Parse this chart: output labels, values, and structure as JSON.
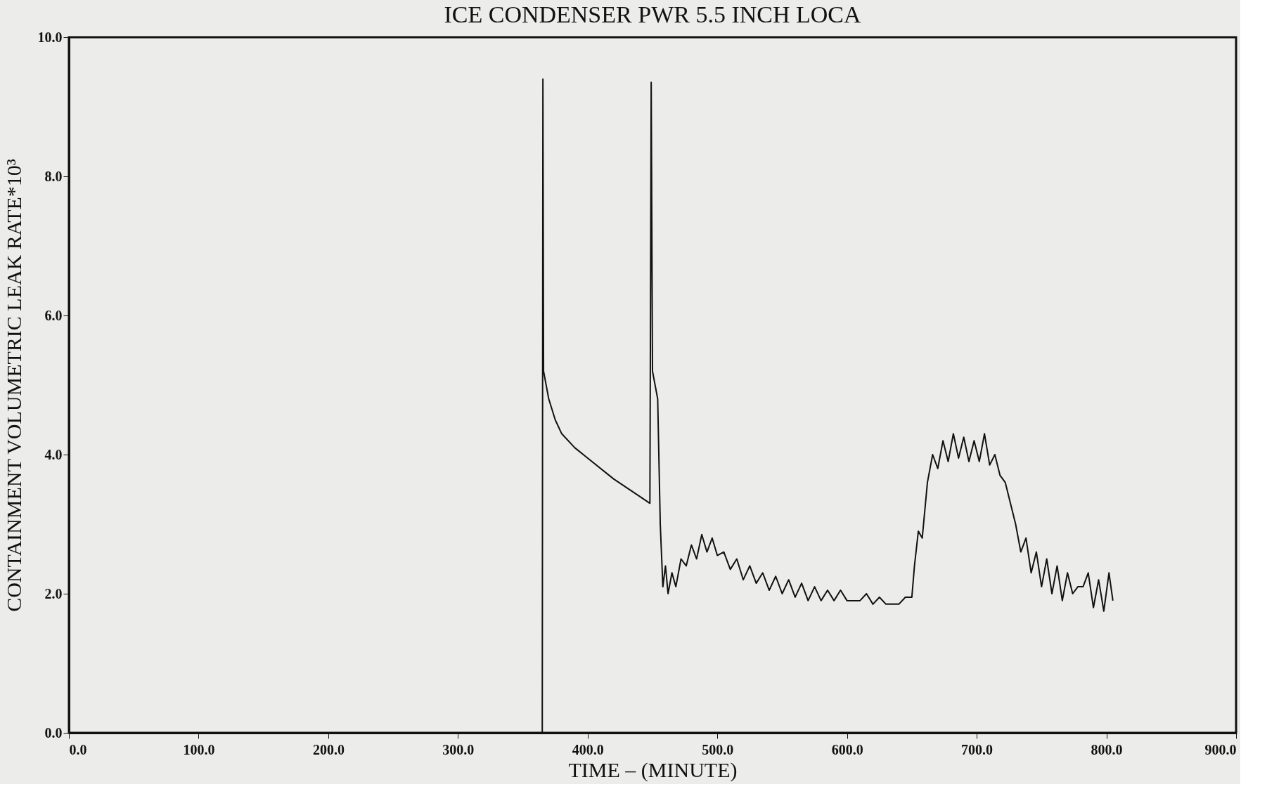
{
  "chart_data": {
    "type": "line",
    "title": "ICE CONDENSER PWR 5.5 INCH LOCA",
    "xlabel": "TIME  –  (MINUTE)",
    "ylabel": "CONTAINMENT VOLUMETRIC LEAK RATE*10³",
    "xlim": [
      0,
      900
    ],
    "ylim": [
      0,
      10
    ],
    "xticks": [
      {
        "value": 0,
        "label": "0.0"
      },
      {
        "value": 100,
        "label": "100.0"
      },
      {
        "value": 200,
        "label": "200.0"
      },
      {
        "value": 300,
        "label": "300.0"
      },
      {
        "value": 400,
        "label": "400.0"
      },
      {
        "value": 500,
        "label": "500.0"
      },
      {
        "value": 600,
        "label": "600.0"
      },
      {
        "value": 700,
        "label": "700.0"
      },
      {
        "value": 800,
        "label": "800.0"
      },
      {
        "value": 900,
        "label": "900.0"
      }
    ],
    "yticks": [
      {
        "value": 0,
        "label": "0.0"
      },
      {
        "value": 2,
        "label": "2.0"
      },
      {
        "value": 4,
        "label": "4.0"
      },
      {
        "value": 6,
        "label": "6.0"
      },
      {
        "value": 8,
        "label": "8.0"
      },
      {
        "value": 10,
        "label": "10.0"
      }
    ],
    "grid": false,
    "marker": "none",
    "line_style": "solid",
    "x": [
      0,
      365,
      365.5,
      366,
      370,
      375,
      380,
      390,
      400,
      420,
      440,
      448,
      449,
      450,
      452,
      454,
      456,
      458,
      460,
      462,
      465,
      468,
      472,
      476,
      480,
      484,
      488,
      492,
      496,
      500,
      505,
      510,
      515,
      520,
      525,
      530,
      535,
      540,
      545,
      550,
      555,
      560,
      565,
      570,
      575,
      580,
      585,
      590,
      595,
      600,
      610,
      615,
      620,
      625,
      630,
      640,
      645,
      650,
      652,
      655,
      658,
      662,
      666,
      670,
      674,
      678,
      682,
      686,
      690,
      694,
      698,
      702,
      706,
      710,
      714,
      718,
      722,
      726,
      730,
      734,
      738,
      742,
      746,
      750,
      754,
      758,
      762,
      766,
      770,
      774,
      778,
      782,
      786,
      790,
      794,
      798,
      802,
      805
    ],
    "series": [
      {
        "color": "#111111",
        "values": [
          0,
          0,
          9.4,
          5.2,
          4.8,
          4.5,
          4.3,
          4.1,
          3.95,
          3.65,
          3.4,
          3.3,
          9.35,
          5.2,
          5.0,
          4.8,
          3.0,
          2.1,
          2.4,
          2.0,
          2.3,
          2.1,
          2.5,
          2.4,
          2.7,
          2.5,
          2.85,
          2.6,
          2.8,
          2.55,
          2.6,
          2.35,
          2.5,
          2.2,
          2.4,
          2.15,
          2.3,
          2.05,
          2.25,
          2.0,
          2.2,
          1.95,
          2.15,
          1.9,
          2.1,
          1.9,
          2.05,
          1.9,
          2.05,
          1.9,
          1.9,
          2.0,
          1.85,
          1.95,
          1.85,
          1.85,
          1.95,
          1.95,
          2.4,
          2.9,
          2.8,
          3.6,
          4.0,
          3.8,
          4.2,
          3.9,
          4.3,
          3.95,
          4.25,
          3.9,
          4.2,
          3.9,
          4.3,
          3.85,
          4.0,
          3.7,
          3.6,
          3.3,
          3.0,
          2.6,
          2.8,
          2.3,
          2.6,
          2.1,
          2.5,
          2.0,
          2.4,
          1.9,
          2.3,
          2.0,
          2.1,
          2.1,
          2.3,
          1.8,
          2.2,
          1.75,
          2.3,
          1.9
        ]
      }
    ]
  }
}
